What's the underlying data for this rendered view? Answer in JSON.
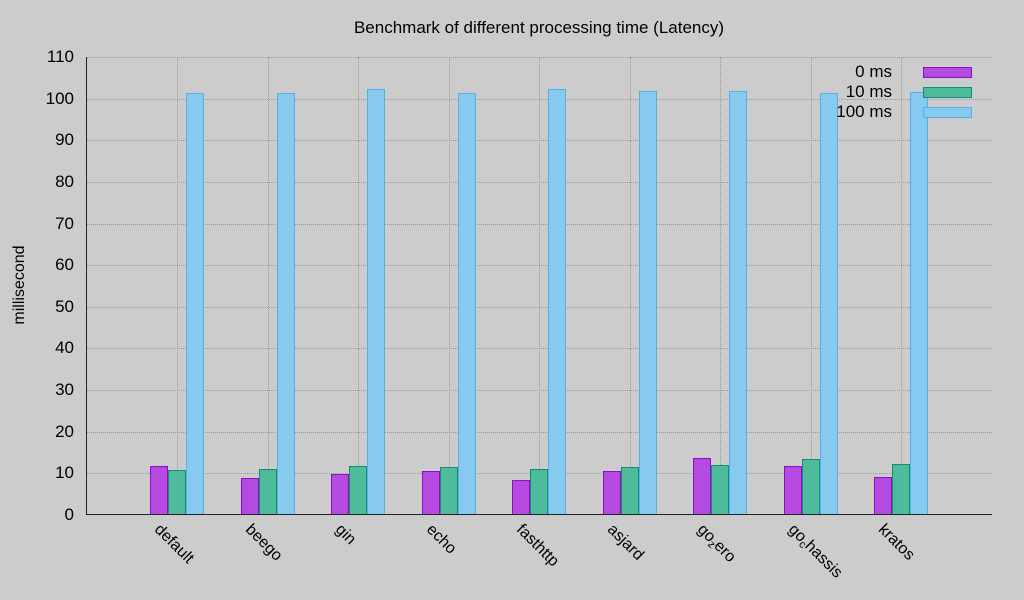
{
  "chart_data": {
    "type": "bar",
    "title": "Benchmark of different processing time (Latency)",
    "xlabel": "",
    "ylabel": "millisecond",
    "ylim": [
      0,
      110
    ],
    "yticks": [
      0,
      10,
      20,
      30,
      40,
      50,
      60,
      70,
      80,
      90,
      100,
      110
    ],
    "grid": true,
    "legend_position": "top-right",
    "categories": [
      "default",
      "beego",
      "gin",
      "echo",
      "fasthttp",
      "asjard",
      "go_zero",
      "go_chassis",
      "kratos"
    ],
    "category_display": [
      {
        "main": "default",
        "sub": "",
        "rest": ""
      },
      {
        "main": "beego",
        "sub": "",
        "rest": ""
      },
      {
        "main": "gin",
        "sub": "",
        "rest": ""
      },
      {
        "main": "echo",
        "sub": "",
        "rest": ""
      },
      {
        "main": "fasthttp",
        "sub": "",
        "rest": ""
      },
      {
        "main": "asjard",
        "sub": "",
        "rest": ""
      },
      {
        "main": "go",
        "sub": "z",
        "rest": "ero"
      },
      {
        "main": "go",
        "sub": "c",
        "rest": "hassis"
      },
      {
        "main": "kratos",
        "sub": "",
        "rest": ""
      }
    ],
    "series": [
      {
        "name": "0 ms",
        "fill": "#b44ae0",
        "stroke": "#8a10c8",
        "values": [
          11.8,
          8.9,
          9.8,
          10.6,
          8.4,
          10.6,
          13.7,
          11.8,
          9.1
        ]
      },
      {
        "name": "10 ms",
        "fill": "#4dbb9c",
        "stroke": "#109070",
        "values": [
          10.8,
          11.0,
          11.8,
          11.5,
          11.0,
          11.5,
          12.0,
          13.4,
          12.2
        ]
      },
      {
        "name": "100 ms",
        "fill": "#88c9f0",
        "stroke": "#56b0e8",
        "values": [
          101.3,
          101.3,
          102.3,
          101.3,
          102.3,
          101.8,
          101.8,
          101.3,
          101.6
        ]
      }
    ]
  }
}
